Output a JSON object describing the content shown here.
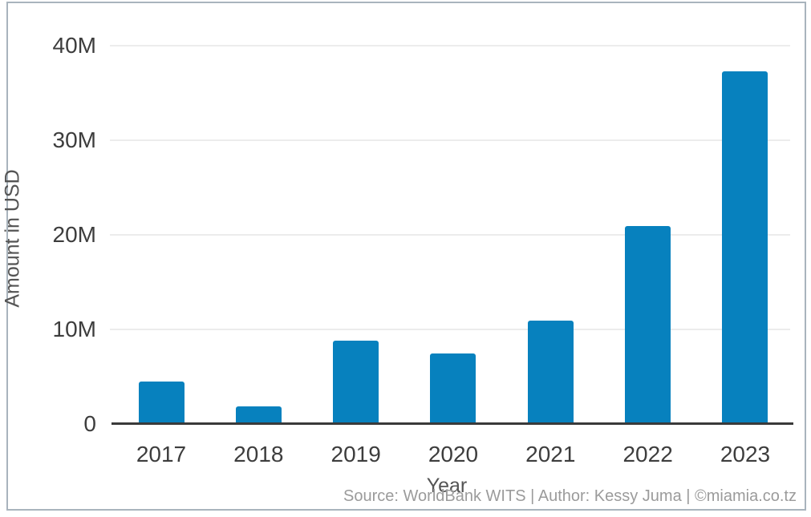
{
  "chart_data": {
    "type": "bar",
    "categories": [
      "2017",
      "2018",
      "2019",
      "2020",
      "2021",
      "2022",
      "2023"
    ],
    "values": [
      4.5,
      1.9,
      8.8,
      7.5,
      10.9,
      20.9,
      37.3
    ],
    "values_unit": "millions of USD",
    "xlabel": "Year",
    "ylabel": "Amount in USD",
    "ylim": [
      0,
      40
    ],
    "yticks": [
      {
        "value": 0,
        "label": "0"
      },
      {
        "value": 10,
        "label": "10M"
      },
      {
        "value": 20,
        "label": "20M"
      },
      {
        "value": 30,
        "label": "30M"
      },
      {
        "value": 40,
        "label": "40M"
      }
    ],
    "grid": "horizontal",
    "legend": "none",
    "bar_color": "#0781be"
  },
  "footer": {
    "source_line": "Source: WorldBank WITS | Author: Kessy Juma | ©miamia.co.tz"
  },
  "colors": {
    "bar": "#0781be",
    "gridline": "#ececec",
    "axis_line": "#3a3a3a",
    "tick_label": "#3d3d3d",
    "axis_title": "#545454",
    "source_text": "#9b9b9b",
    "frame_border": "#a9b4bd",
    "background": "#ffffff"
  }
}
